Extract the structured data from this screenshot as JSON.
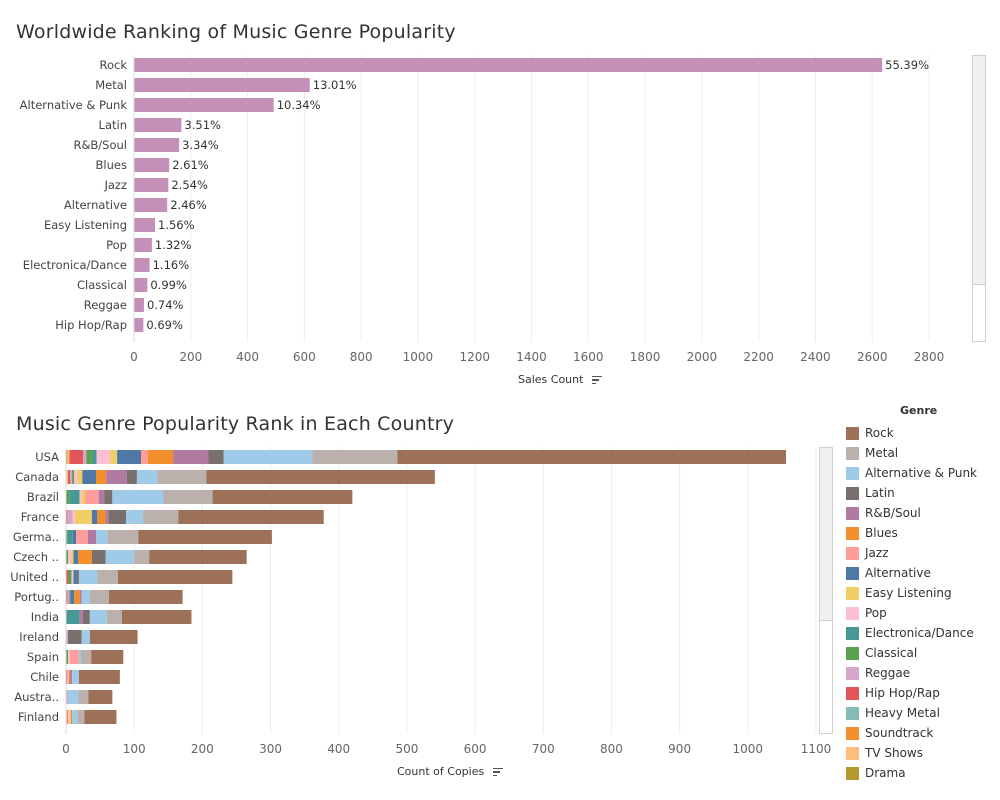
{
  "charts": {
    "top": {
      "title": "Worldwide Ranking of Music Genre Popularity",
      "axis_title": "Sales Count"
    },
    "bottom": {
      "title": "Music Genre Popularity Rank in Each Country",
      "axis_title": "Count of Copies"
    }
  },
  "legend": {
    "title": "Genre",
    "items": [
      {
        "label": "Rock",
        "color": "#9c7158"
      },
      {
        "label": "Metal",
        "color": "#bab0ac"
      },
      {
        "label": "Alternative & Punk",
        "color": "#a0cbe8"
      },
      {
        "label": "Latin",
        "color": "#79706e"
      },
      {
        "label": "R&B/Soul",
        "color": "#b07aa1"
      },
      {
        "label": "Blues",
        "color": "#f28e2b"
      },
      {
        "label": "Jazz",
        "color": "#ff9d9a"
      },
      {
        "label": "Alternative",
        "color": "#4e79a7"
      },
      {
        "label": "Easy Listening",
        "color": "#f1ce63"
      },
      {
        "label": "Pop",
        "color": "#fabfd2"
      },
      {
        "label": "Electronica/Dance",
        "color": "#499894"
      },
      {
        "label": "Classical",
        "color": "#59a14f"
      },
      {
        "label": "Reggae",
        "color": "#d4a6c8"
      },
      {
        "label": "Hip Hop/Rap",
        "color": "#e15759"
      },
      {
        "label": "Heavy Metal",
        "color": "#86bcb6"
      },
      {
        "label": "Soundtrack",
        "color": "#f28e2b"
      },
      {
        "label": "TV Shows",
        "color": "#ffbe7d"
      },
      {
        "label": "Drama",
        "color": "#b6992d"
      }
    ]
  },
  "chart_data": [
    {
      "type": "bar",
      "orientation": "horizontal",
      "title": "Worldwide Ranking of Music Genre Popularity",
      "xlabel": "Sales Count",
      "ylabel": "",
      "xlim": [
        0,
        2800
      ],
      "xticks": [
        0,
        200,
        400,
        600,
        800,
        1000,
        1200,
        1400,
        1600,
        1800,
        2000,
        2200,
        2400,
        2600,
        2800
      ],
      "bar_color": "#c490b8",
      "grid": "vertical",
      "categories": [
        "Rock",
        "Metal",
        "Alternative & Punk",
        "Latin",
        "R&B/Soul",
        "Blues",
        "Jazz",
        "Alternative",
        "Easy Listening",
        "Pop",
        "Electronica/Dance",
        "Classical",
        "Reggae",
        "Hip Hop/Rap"
      ],
      "values": [
        2635,
        619,
        492,
        167,
        159,
        124,
        121,
        117,
        74,
        63,
        55,
        47,
        35,
        33
      ],
      "labels": [
        "55.39%",
        "13.01%",
        "10.34%",
        "3.51%",
        "3.34%",
        "2.61%",
        "2.54%",
        "2.46%",
        "1.56%",
        "1.32%",
        "1.16%",
        "0.99%",
        "0.74%",
        "0.69%"
      ]
    },
    {
      "type": "bar",
      "orientation": "horizontal",
      "stacked": true,
      "title": "Music Genre Popularity Rank in Each Country",
      "xlabel": "Count of Copies",
      "ylabel": "",
      "xlim": [
        0,
        1100
      ],
      "xticks": [
        0,
        100,
        200,
        300,
        400,
        500,
        600,
        700,
        800,
        900,
        1000,
        1100
      ],
      "grid": "vertical",
      "legend": "right",
      "categories": [
        "USA",
        "Canada",
        "Brazil",
        "France",
        "Germa..",
        "Czech ..",
        "United ..",
        "Portug..",
        "India",
        "Ireland",
        "Spain",
        "Chile",
        "Austra..",
        "Finland"
      ],
      "series": [
        {
          "name": "Drama",
          "values": [
            2,
            1,
            0,
            0,
            0,
            0,
            0,
            0,
            0,
            0,
            0,
            0,
            0,
            1
          ]
        },
        {
          "name": "TV Shows",
          "values": [
            3,
            2,
            0,
            0,
            0,
            0,
            0,
            0,
            0,
            0,
            0,
            0,
            0,
            1
          ]
        },
        {
          "name": "Hip Hop/Rap",
          "values": [
            20,
            3,
            0,
            2,
            0,
            0,
            3,
            2,
            0,
            0,
            0,
            2,
            0,
            1
          ]
        },
        {
          "name": "Reggae",
          "values": [
            5,
            3,
            0,
            8,
            0,
            0,
            0,
            3,
            0,
            3,
            0,
            0,
            3,
            0
          ]
        },
        {
          "name": "Classical",
          "values": [
            8,
            3,
            5,
            0,
            2,
            3,
            5,
            0,
            0,
            0,
            3,
            0,
            0,
            0
          ]
        },
        {
          "name": "Electronica/Dance",
          "values": [
            7,
            0,
            15,
            0,
            8,
            0,
            0,
            2,
            20,
            0,
            0,
            0,
            0,
            0
          ]
        },
        {
          "name": "Pop",
          "values": [
            20,
            5,
            3,
            3,
            0,
            5,
            3,
            0,
            0,
            0,
            3,
            2,
            0,
            2
          ]
        },
        {
          "name": "Easy Listening",
          "values": [
            10,
            7,
            5,
            25,
            0,
            3,
            0,
            0,
            0,
            0,
            0,
            0,
            0,
            2
          ]
        },
        {
          "name": "Alternative",
          "values": [
            35,
            20,
            0,
            8,
            5,
            7,
            5,
            5,
            0,
            0,
            0,
            0,
            0,
            0
          ]
        },
        {
          "name": "Jazz",
          "values": [
            10,
            0,
            20,
            0,
            17,
            0,
            0,
            0,
            0,
            0,
            13,
            0,
            0,
            0
          ]
        },
        {
          "name": "Blues",
          "values": [
            37,
            15,
            0,
            12,
            0,
            20,
            0,
            8,
            0,
            0,
            0,
            2,
            0,
            2
          ]
        },
        {
          "name": "R&B/Soul",
          "values": [
            52,
            30,
            8,
            5,
            12,
            0,
            0,
            3,
            5,
            0,
            0,
            3,
            0,
            0
          ]
        },
        {
          "name": "Latin",
          "values": [
            22,
            15,
            12,
            25,
            0,
            20,
            3,
            0,
            10,
            20,
            0,
            0,
            0,
            0
          ]
        },
        {
          "name": "Alternative & Punk",
          "values": [
            130,
            30,
            75,
            25,
            17,
            42,
            27,
            12,
            25,
            12,
            3,
            10,
            15,
            8
          ]
        },
        {
          "name": "Metal",
          "values": [
            125,
            72,
            72,
            52,
            45,
            22,
            30,
            28,
            22,
            0,
            15,
            0,
            15,
            10
          ]
        },
        {
          "name": "Rock",
          "values": [
            570,
            335,
            205,
            213,
            196,
            143,
            168,
            108,
            102,
            70,
            47,
            60,
            35,
            47
          ]
        }
      ]
    }
  ]
}
